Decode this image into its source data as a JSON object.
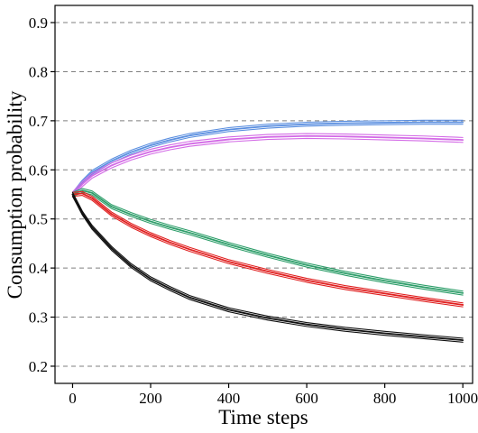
{
  "chart_data": {
    "type": "line",
    "title": "",
    "xlabel": "Time steps",
    "ylabel": "Consumption probability",
    "xlim": [
      -45,
      1025
    ],
    "ylim": [
      0.165,
      0.935
    ],
    "xticks": [
      0,
      200,
      400,
      600,
      800,
      1000
    ],
    "yticks": [
      0.2,
      0.3,
      0.4,
      0.5,
      0.6,
      0.7,
      0.8,
      0.9
    ],
    "grid": "horizontal dashed",
    "legend": "none",
    "series": [
      {
        "color": "#5b8fe0",
        "x": [
          0,
          25,
          50,
          100,
          150,
          200,
          250,
          300,
          400,
          500,
          600,
          700,
          800,
          900,
          1000
        ],
        "y": [
          0.55,
          0.575,
          0.595,
          0.618,
          0.636,
          0.65,
          0.661,
          0.67,
          0.682,
          0.689,
          0.693,
          0.695,
          0.696,
          0.697,
          0.697
        ],
        "band": 0.004
      },
      {
        "color": "#d36ae6",
        "x": [
          0,
          25,
          50,
          100,
          150,
          200,
          250,
          300,
          400,
          500,
          600,
          700,
          800,
          900,
          1000
        ],
        "y": [
          0.55,
          0.571,
          0.588,
          0.609,
          0.625,
          0.637,
          0.646,
          0.653,
          0.662,
          0.667,
          0.669,
          0.668,
          0.666,
          0.664,
          0.661
        ],
        "band": 0.005
      },
      {
        "color": "#2e9e6a",
        "x": [
          0,
          25,
          50,
          100,
          150,
          200,
          250,
          300,
          400,
          500,
          600,
          700,
          800,
          900,
          1000
        ],
        "y": [
          0.55,
          0.558,
          0.553,
          0.525,
          0.509,
          0.495,
          0.483,
          0.472,
          0.448,
          0.426,
          0.406,
          0.389,
          0.374,
          0.361,
          0.349
        ],
        "band": 0.004
      },
      {
        "color": "#e02020",
        "x": [
          0,
          25,
          50,
          100,
          150,
          200,
          250,
          300,
          400,
          500,
          600,
          700,
          800,
          900,
          1000
        ],
        "y": [
          0.55,
          0.552,
          0.542,
          0.51,
          0.487,
          0.468,
          0.452,
          0.438,
          0.413,
          0.393,
          0.375,
          0.36,
          0.348,
          0.336,
          0.325
        ],
        "band": 0.004
      },
      {
        "color": "#111111",
        "x": [
          0,
          10,
          25,
          50,
          100,
          150,
          200,
          250,
          300,
          400,
          500,
          600,
          700,
          800,
          900,
          1000
        ],
        "y": [
          0.55,
          0.535,
          0.512,
          0.483,
          0.44,
          0.405,
          0.378,
          0.358,
          0.34,
          0.315,
          0.298,
          0.285,
          0.275,
          0.267,
          0.26,
          0.253
        ],
        "band": 0.004
      }
    ]
  }
}
